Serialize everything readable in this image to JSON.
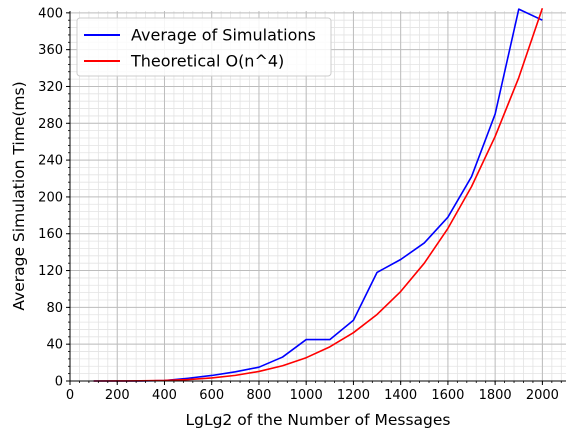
{
  "chart_data": {
    "type": "line",
    "xlabel": "LgLg2 of the Number of Messages",
    "ylabel": "Average Simulation Time(ms)",
    "xlim": [
      0,
      2100
    ],
    "ylim": [
      0,
      402
    ],
    "x_ticks": [
      0,
      200,
      400,
      600,
      800,
      1000,
      1200,
      1400,
      1600,
      1800,
      2000
    ],
    "y_ticks": [
      0,
      40,
      80,
      120,
      160,
      200,
      240,
      280,
      320,
      360,
      400
    ],
    "grid": "major and minor",
    "legend_position": "top-left",
    "series": [
      {
        "name": "Average of Simulations",
        "color": "#0000ff",
        "x": [
          100,
          200,
          300,
          400,
          500,
          600,
          700,
          800,
          900,
          1000,
          1100,
          1200,
          1300,
          1400,
          1500,
          1600,
          1700,
          1800,
          1900,
          2000
        ],
        "y": [
          0,
          0,
          0,
          0.5,
          3,
          6,
          10,
          15,
          26,
          45,
          45,
          66,
          118,
          132,
          150,
          178,
          222,
          290,
          404,
          392
        ]
      },
      {
        "name": "Theoretical O(n^4)",
        "color": "#ff0000",
        "x": [
          100,
          200,
          300,
          400,
          500,
          600,
          700,
          800,
          900,
          1000,
          1100,
          1200,
          1300,
          1400,
          1500,
          1600,
          1700,
          1800,
          1900,
          2000
        ],
        "y": [
          0.0,
          0.04,
          0.2,
          0.6,
          1.6,
          3.3,
          6.1,
          10.4,
          16.6,
          25.3,
          37.1,
          52.5,
          72.3,
          97.2,
          128.0,
          165.8,
          211.2,
          265.7,
          329.6,
          405
        ]
      }
    ]
  }
}
